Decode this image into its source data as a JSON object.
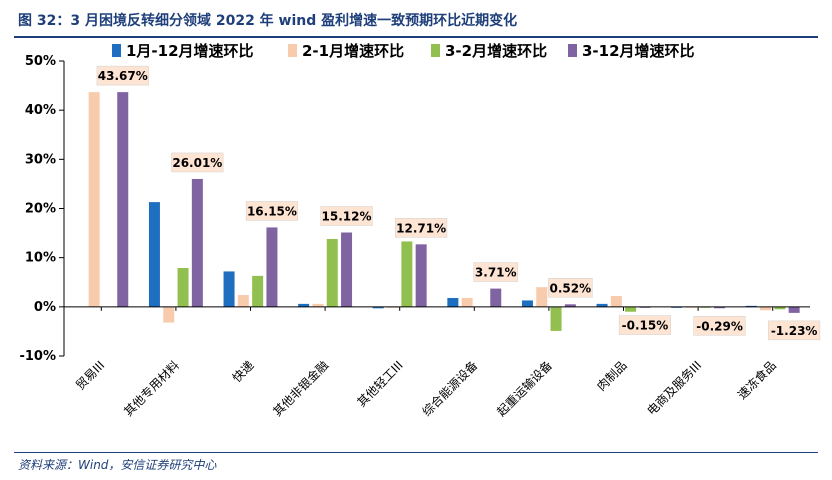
{
  "figure": {
    "title": "图 32：3 月困境反转细分领域 2022 年 wind 盈利增速一致预期环比近期变化",
    "source": "资料来源：Wind，安信证券研究中心"
  },
  "chart_data": {
    "type": "bar",
    "categories": [
      "贸易III",
      "其他专用材料",
      "快递",
      "其他非银金融",
      "其他轻工III",
      "综合能源设备",
      "起重运输设备",
      "肉制品",
      "电商及服务III",
      "速冻食品"
    ],
    "series": [
      {
        "name": "1月-12月增速环比",
        "color": "#1f6fc0",
        "values": [
          0,
          21.3,
          7.2,
          0.6,
          -0.3,
          1.8,
          1.3,
          0.6,
          -0.1,
          0.2
        ]
      },
      {
        "name": "2-1月增速环比",
        "color": "#f8cbad",
        "values": [
          43.67,
          -3.2,
          2.4,
          0.6,
          -0.1,
          1.8,
          4.0,
          2.2,
          -0.1,
          -0.7
        ]
      },
      {
        "name": "3-2月增速环比",
        "color": "#92c050",
        "values": [
          0,
          7.9,
          6.3,
          13.8,
          13.3,
          0.0,
          -4.9,
          -1.0,
          -0.1,
          -0.5
        ]
      },
      {
        "name": "3-12月增速环比",
        "color": "#8064a2",
        "values": [
          43.67,
          26.01,
          16.15,
          15.12,
          12.71,
          3.71,
          0.52,
          -0.15,
          -0.29,
          -1.23
        ]
      }
    ],
    "data_labels": [
      "43.67%",
      "26.01%",
      "16.15%",
      "15.12%",
      "12.71%",
      "3.71%",
      "0.52%",
      "-0.15%",
      "-0.29%",
      "-1.23%"
    ],
    "ylim": [
      -10,
      50
    ],
    "yticks": [
      "50%",
      "40%",
      "30%",
      "20%",
      "10%",
      "0%",
      "-10%"
    ],
    "legend_position": "top",
    "grid": false,
    "label_box_color": "#fde4d3"
  }
}
